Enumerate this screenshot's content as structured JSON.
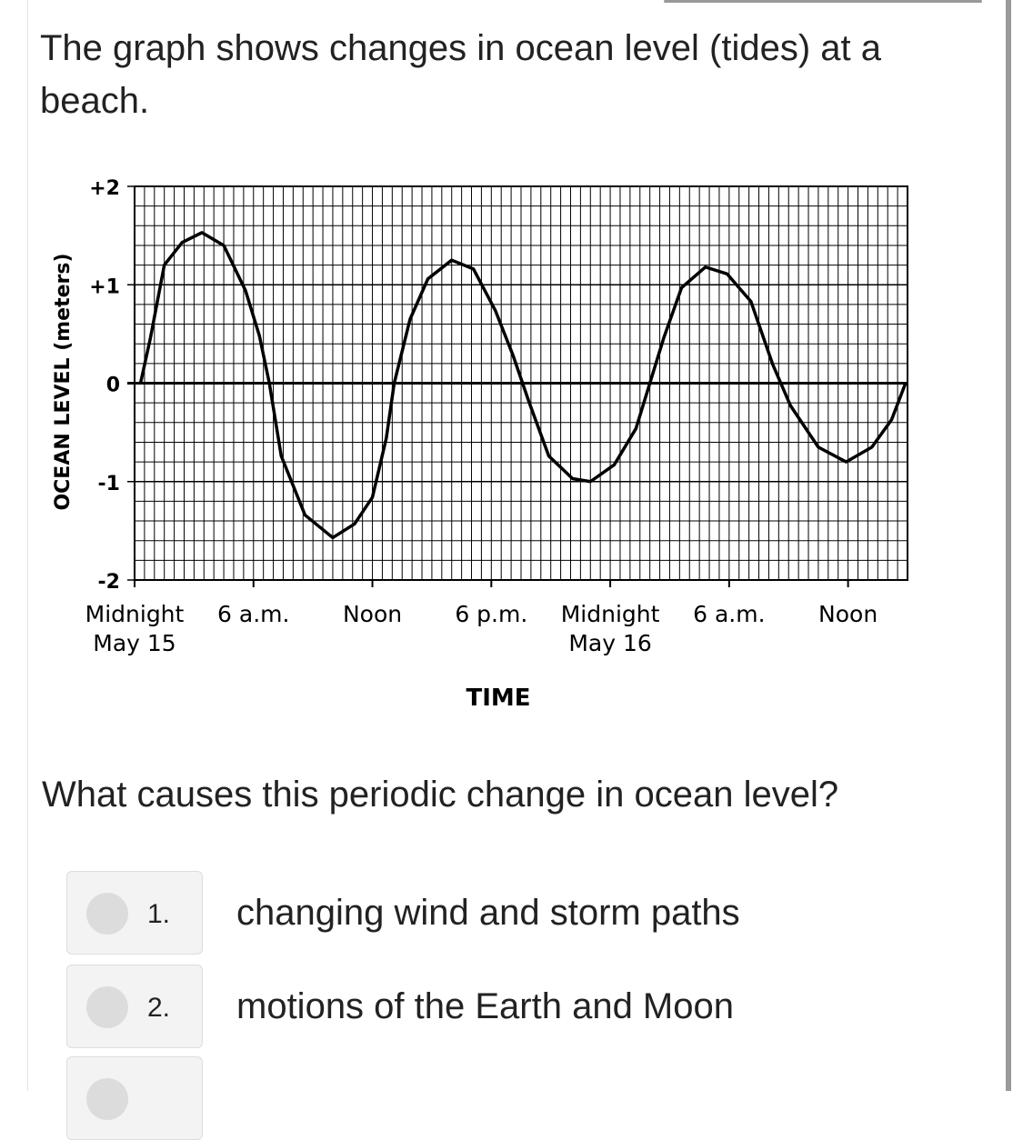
{
  "question": {
    "stem": "The graph shows changes in ocean level (tides) at a beach.",
    "prompt": "What causes this periodic change in ocean level?"
  },
  "chart_data": {
    "type": "line",
    "y_label": "OCEAN LEVEL (meters)",
    "x_label": "TIME",
    "xlim": [
      0,
      39
    ],
    "ylim": [
      -2,
      2
    ],
    "xticks": [
      {
        "value": 0,
        "label": "Midnight\nMay 15"
      },
      {
        "value": 6,
        "label": "6 a.m."
      },
      {
        "value": 12,
        "label": "Noon"
      },
      {
        "value": 18,
        "label": "6 p.m."
      },
      {
        "value": 24,
        "label": "Midnight\nMay 16"
      },
      {
        "value": 30,
        "label": "6 a.m."
      },
      {
        "value": 36,
        "label": "Noon"
      }
    ],
    "yticks": [
      {
        "value": 2,
        "label": "+2"
      },
      {
        "value": 1,
        "label": "+1"
      },
      0,
      -1,
      -2
    ],
    "grid": true,
    "x": [
      0.3,
      0.8,
      1.5,
      2.4,
      3.4,
      4.5,
      5.6,
      6.3,
      6.8,
      7.4,
      8.6,
      10,
      11.1,
      12,
      12.7,
      13.1,
      13.9,
      14.8,
      16,
      17.1,
      18.2,
      19.1,
      19.9,
      20.9,
      22.1,
      23,
      24.2,
      25.3,
      26,
      26.7,
      27.6,
      28.8,
      29.9,
      31.1,
      32.2,
      33.1,
      34.5,
      35.9,
      37.2,
      38.2,
      38.9
    ],
    "series": [
      {
        "name": "Ocean level",
        "color": "#000000",
        "values": [
          0,
          0.46,
          1.2,
          1.43,
          1.53,
          1.4,
          0.94,
          0.48,
          0,
          -0.74,
          -1.34,
          -1.57,
          -1.43,
          -1.16,
          -0.56,
          0,
          0.65,
          1.06,
          1.25,
          1.16,
          0.74,
          0.28,
          -0.19,
          -0.74,
          -0.97,
          -1.0,
          -0.83,
          -0.46,
          0,
          0.46,
          0.97,
          1.18,
          1.11,
          0.83,
          0.19,
          -0.23,
          -0.65,
          -0.8,
          -0.65,
          -0.37,
          0
        ]
      }
    ]
  },
  "options": [
    {
      "number": "1.",
      "text": "changing wind and storm paths"
    },
    {
      "number": "2.",
      "text": "motions of the Earth and Moon"
    }
  ]
}
